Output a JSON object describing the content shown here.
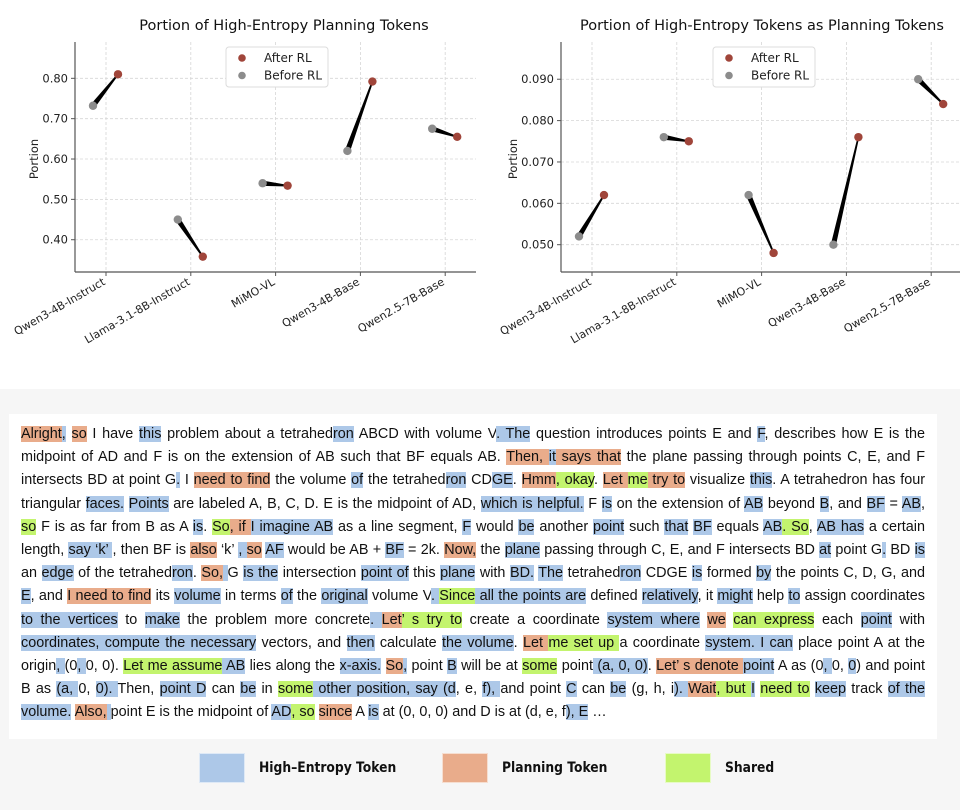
{
  "chart_data": [
    {
      "type": "scatter",
      "subtype": "dumbbell",
      "title": "Portion of High-Entropy Planning Tokens",
      "xlabel": "",
      "ylabel": "Portion",
      "categories": [
        "Qwen3-4B-Instruct",
        "Llama-3.1-8B-Instruct",
        "MiMO-VL",
        "Qwen3-4B-Base",
        "Qwen2.5-7B-Base"
      ],
      "series": [
        {
          "name": "Before RL",
          "color": "#8c8c8c",
          "values": [
            0.732,
            0.45,
            0.54,
            0.62,
            0.675
          ]
        },
        {
          "name": "After RL",
          "color": "#a0453a",
          "values": [
            0.81,
            0.358,
            0.534,
            0.792,
            0.655
          ]
        }
      ],
      "yticks": [
        0.4,
        0.5,
        0.6,
        0.7,
        0.8
      ],
      "ytick_labels": [
        "0.40",
        "0.50",
        "0.60",
        "0.70",
        "0.80"
      ],
      "ylim": [
        0.32,
        0.89
      ],
      "grid": true,
      "legend": {
        "entries": [
          "After RL",
          "Before RL"
        ],
        "position": "top-center"
      }
    },
    {
      "type": "scatter",
      "subtype": "dumbbell",
      "title": "Portion of High-Entropy Tokens as Planning Tokens",
      "xlabel": "",
      "ylabel": "Portion",
      "categories": [
        "Qwen3-4B-Instruct",
        "Llama-3.1-8B-Instruct",
        "MiMO-VL",
        "Qwen3-4B-Base",
        "Qwen2.5-7B-Base"
      ],
      "series": [
        {
          "name": "Before RL",
          "color": "#8c8c8c",
          "values": [
            0.052,
            0.076,
            0.062,
            0.05,
            0.09
          ]
        },
        {
          "name": "After RL",
          "color": "#a0453a",
          "values": [
            0.062,
            0.075,
            0.048,
            0.076,
            0.084
          ]
        }
      ],
      "yticks": [
        0.05,
        0.06,
        0.07,
        0.08,
        0.09
      ],
      "ytick_labels": [
        "0.050",
        "0.060",
        "0.070",
        "0.080",
        "0.090"
      ],
      "ylim": [
        0.0434,
        0.099
      ],
      "grid": true,
      "legend": {
        "entries": [
          "After RL",
          "Before RL"
        ],
        "position": "top-center"
      }
    }
  ],
  "passage": {
    "segments": [
      [
        "Alright",
        "p"
      ],
      [
        ",",
        "h"
      ],
      [
        " ",
        ""
      ],
      [
        "so",
        "p"
      ],
      [
        " I have ",
        ""
      ],
      [
        "this",
        "h"
      ],
      [
        " problem about a tetrahed",
        ""
      ],
      [
        "ron",
        "h"
      ],
      [
        " ABCD with volume V",
        ""
      ],
      [
        ". The",
        "h"
      ],
      [
        " question introduces points E and ",
        ""
      ],
      [
        "F",
        "h"
      ],
      [
        ", describes how E is the midpoint of AD and F is on the extension of AB such that BF equals AB. ",
        ""
      ],
      [
        "Then, ",
        "p"
      ],
      [
        "it",
        "h"
      ],
      [
        " ",
        "p"
      ],
      [
        "says that",
        "p"
      ],
      [
        " the plane passing through points C, E, and F intersects BD at point G",
        ""
      ],
      [
        ".",
        "h"
      ],
      [
        " I ",
        ""
      ],
      [
        "need to find",
        "p"
      ],
      [
        " the volume ",
        ""
      ],
      [
        "of",
        "h"
      ],
      [
        " the tetrahed",
        ""
      ],
      [
        "ron",
        "h"
      ],
      [
        " CD",
        ""
      ],
      [
        "GE",
        "h"
      ],
      [
        ". ",
        ""
      ],
      [
        "Hmm",
        "p"
      ],
      [
        ", okay",
        "s"
      ],
      [
        ". ",
        ""
      ],
      [
        "Let ",
        "p"
      ],
      [
        "me",
        "s"
      ],
      [
        " try to",
        "p"
      ],
      [
        " visualize ",
        ""
      ],
      [
        "this",
        "h"
      ],
      [
        ". A tetrahedron has four triangular ",
        ""
      ],
      [
        "faces.",
        "h"
      ],
      [
        " ",
        ""
      ],
      [
        "Points",
        "h"
      ],
      [
        " are labeled A, B, C, D. E is the midpoint of AD, ",
        ""
      ],
      [
        "which is helpful.",
        "h"
      ],
      [
        " F ",
        ""
      ],
      [
        "is",
        "h"
      ],
      [
        " on the extension of ",
        ""
      ],
      [
        "AB",
        "h"
      ],
      [
        " beyond ",
        ""
      ],
      [
        "B",
        "h"
      ],
      [
        ", and ",
        ""
      ],
      [
        "BF",
        "h"
      ],
      [
        " = ",
        ""
      ],
      [
        "AB",
        "h"
      ],
      [
        ", ",
        ""
      ],
      [
        "so",
        "s"
      ],
      [
        " F is as far from B as A ",
        ""
      ],
      [
        "is",
        "h"
      ],
      [
        ". ",
        ""
      ],
      [
        "So",
        "s"
      ],
      [
        ", if ",
        "p"
      ],
      [
        "I imagine AB",
        "h"
      ],
      [
        " as a line segment, ",
        ""
      ],
      [
        "F",
        "h"
      ],
      [
        " would ",
        ""
      ],
      [
        "be",
        "h"
      ],
      [
        " another ",
        ""
      ],
      [
        "point",
        "h"
      ],
      [
        " such ",
        ""
      ],
      [
        "that",
        "h"
      ],
      [
        " ",
        ""
      ],
      [
        "BF",
        "h"
      ],
      [
        " equals ",
        ""
      ],
      [
        "AB",
        "h"
      ],
      [
        ". So",
        "s"
      ],
      [
        ", ",
        ""
      ],
      [
        "AB has",
        "h"
      ],
      [
        " a certain length, ",
        ""
      ],
      [
        "say ‘k’ ",
        "h"
      ],
      [
        ", then BF is ",
        ""
      ],
      [
        "also",
        "p"
      ],
      [
        " ‘k’ ",
        ""
      ],
      [
        ", ",
        "h"
      ],
      [
        "so",
        "p"
      ],
      [
        " ",
        ""
      ],
      [
        "AF",
        "h"
      ],
      [
        " would be AB + ",
        ""
      ],
      [
        "BF",
        "h"
      ],
      [
        " = 2k. ",
        ""
      ],
      [
        "Now,",
        "p"
      ],
      [
        " the ",
        ""
      ],
      [
        "plane",
        "h"
      ],
      [
        " passing through C, E, and F intersects BD ",
        ""
      ],
      [
        "at",
        "h"
      ],
      [
        " point G",
        ""
      ],
      [
        ".",
        "h"
      ],
      [
        " BD ",
        ""
      ],
      [
        "is",
        "h"
      ],
      [
        " an ",
        ""
      ],
      [
        "edge",
        "h"
      ],
      [
        " of the tetrahed",
        ""
      ],
      [
        "ron",
        "h"
      ],
      [
        ". ",
        ""
      ],
      [
        "So,",
        "p"
      ],
      [
        " ",
        "h"
      ],
      [
        " G ",
        ""
      ],
      [
        "is the",
        "h"
      ],
      [
        " intersection ",
        ""
      ],
      [
        "point of",
        "h"
      ],
      [
        " this ",
        ""
      ],
      [
        "plane",
        "h"
      ],
      [
        " with ",
        ""
      ],
      [
        "BD.",
        "h"
      ],
      [
        " ",
        ""
      ],
      [
        "The",
        "h"
      ],
      [
        " tetrahed",
        ""
      ],
      [
        "ron",
        "h"
      ],
      [
        " CDGE ",
        ""
      ],
      [
        "is",
        "h"
      ],
      [
        " formed ",
        ""
      ],
      [
        "by",
        "h"
      ],
      [
        " the points C, D, G, and ",
        ""
      ],
      [
        "E",
        "h"
      ],
      [
        ", and ",
        ""
      ],
      [
        "I need to find",
        "p"
      ],
      [
        " its ",
        ""
      ],
      [
        "volume",
        "h"
      ],
      [
        " in terms ",
        ""
      ],
      [
        "of",
        "h"
      ],
      [
        " the ",
        ""
      ],
      [
        "original",
        "h"
      ],
      [
        " volume V",
        ""
      ],
      [
        ". ",
        "h"
      ],
      [
        "Since",
        "s"
      ],
      [
        " all the points are",
        "h"
      ],
      [
        " defined ",
        ""
      ],
      [
        "relatively",
        "h"
      ],
      [
        ", it ",
        ""
      ],
      [
        "might",
        "h"
      ],
      [
        " help ",
        ""
      ],
      [
        "to",
        "h"
      ],
      [
        " assign coordinates ",
        ""
      ],
      [
        "to the vertices",
        "h"
      ],
      [
        " to ",
        ""
      ],
      [
        "make",
        "h"
      ],
      [
        " the problem more concrete",
        ""
      ],
      [
        ". ",
        "h"
      ],
      [
        "Let",
        "p"
      ],
      [
        "’ s try to",
        "s"
      ],
      [
        " create a coordinate ",
        ""
      ],
      [
        "system where",
        "h"
      ],
      [
        " ",
        ""
      ],
      [
        "we",
        "p"
      ],
      [
        " ",
        ""
      ],
      [
        "can express",
        "s"
      ],
      [
        " each ",
        ""
      ],
      [
        "point",
        "h"
      ],
      [
        " with ",
        ""
      ],
      [
        "coordinates, compute the necessary",
        "h"
      ],
      [
        " vectors, and ",
        ""
      ],
      [
        "then",
        "h"
      ],
      [
        " calculate ",
        ""
      ],
      [
        "the volume",
        "h"
      ],
      [
        ". ",
        ""
      ],
      [
        "Let ",
        "p"
      ],
      [
        "me set up ",
        "s"
      ],
      [
        "a coordinate ",
        ""
      ],
      [
        "system. I can",
        "h"
      ],
      [
        " place point A at the origin",
        ""
      ],
      [
        ", ",
        "h"
      ],
      [
        "(0",
        ""
      ],
      [
        ", ",
        "h"
      ],
      [
        "0, 0). ",
        ""
      ],
      [
        "Let me assume",
        "s"
      ],
      [
        " AB",
        "h"
      ],
      [
        " lies along the ",
        ""
      ],
      [
        "x-axis.",
        "h"
      ],
      [
        " ",
        ""
      ],
      [
        "So",
        "p"
      ],
      [
        ",",
        "h"
      ],
      [
        " point ",
        ""
      ],
      [
        "B",
        "h"
      ],
      [
        " will be at ",
        ""
      ],
      [
        "some",
        "s"
      ],
      [
        " point",
        ""
      ],
      [
        " (a, 0, ",
        "h"
      ],
      [
        "0)",
        "h"
      ],
      [
        ". ",
        ""
      ],
      [
        "Let’ s denote ",
        "p"
      ],
      [
        "point",
        "h"
      ],
      [
        " A as (0",
        ""
      ],
      [
        ", ",
        "h"
      ],
      [
        "0, ",
        ""
      ],
      [
        "0",
        "h"
      ],
      [
        ") and point B as ",
        ""
      ],
      [
        "(a, ",
        "h"
      ],
      [
        "0, ",
        ""
      ],
      [
        "0). ",
        "h"
      ],
      [
        " Then, ",
        ""
      ],
      [
        "point D",
        "h"
      ],
      [
        " can ",
        ""
      ],
      [
        "be",
        "h"
      ],
      [
        " in ",
        ""
      ],
      [
        "some",
        "s"
      ],
      [
        " other position, say (d",
        "h"
      ],
      [
        ", e, ",
        ""
      ],
      [
        "f), ",
        "h"
      ],
      [
        "and point ",
        ""
      ],
      [
        "C",
        "h"
      ],
      [
        " can ",
        ""
      ],
      [
        "be",
        "h"
      ],
      [
        " (g, h, i",
        ""
      ],
      [
        "). ",
        "h"
      ],
      [
        "Wait",
        "p"
      ],
      [
        ", but ",
        "s"
      ],
      [
        "I",
        "h"
      ],
      [
        " ",
        ""
      ],
      [
        "need to",
        "s"
      ],
      [
        " ",
        ""
      ],
      [
        "keep",
        "h"
      ],
      [
        " track ",
        ""
      ],
      [
        "of the volume.",
        "h"
      ],
      [
        " ",
        ""
      ],
      [
        "Also,",
        "p"
      ],
      [
        " ",
        "h"
      ],
      [
        "point E is the midpoint of ",
        ""
      ],
      [
        "AD",
        "h"
      ],
      [
        ", so",
        "s"
      ],
      [
        " ",
        ""
      ],
      [
        "since",
        "p"
      ],
      [
        " A ",
        ""
      ],
      [
        "is",
        "h"
      ],
      [
        " at (0, 0, 0) and D is at (d, e, f",
        ""
      ],
      [
        "), E",
        "h"
      ],
      [
        " …",
        ""
      ]
    ]
  },
  "legend": {
    "items": [
      {
        "label": "High–Entropy Token",
        "color": "#adc8e8"
      },
      {
        "label": "Planning Token",
        "color": "#e9ac8b"
      },
      {
        "label": "Shared",
        "color": "#c3f46e"
      }
    ]
  }
}
